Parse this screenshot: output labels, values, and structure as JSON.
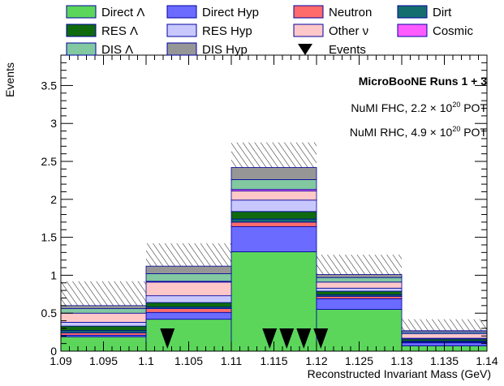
{
  "chart_data": {
    "type": "bar",
    "subtype": "stacked histogram with data points",
    "xlabel": "Reconstructed Invariant Mass (GeV)",
    "ylabel": "Events",
    "xlim": [
      1.09,
      1.14
    ],
    "ylim": [
      0,
      3.9
    ],
    "bin_edges": [
      1.09,
      1.1,
      1.11,
      1.12,
      1.13,
      1.14
    ],
    "x_ticks": [
      "1.09",
      "1.095",
      "1.1",
      "1.105",
      "1.11",
      "1.115",
      "1.12",
      "1.125",
      "1.13",
      "1.135",
      "1.14"
    ],
    "x_tick_values": [
      1.09,
      1.095,
      1.1,
      1.105,
      1.11,
      1.115,
      1.12,
      1.125,
      1.13,
      1.135,
      1.14
    ],
    "y_ticks": [
      "0",
      "0.5",
      "1",
      "1.5",
      "2",
      "2.5",
      "3",
      "3.5"
    ],
    "y_tick_values": [
      0,
      0.5,
      1,
      1.5,
      2,
      2.5,
      3,
      3.5
    ],
    "annotations": {
      "title": "MicroBooNE Runs 1 + 3",
      "fhc_prefix": "NuMI FHC, 2.2 × 10",
      "fhc_exp": "20",
      "fhc_suffix": " POT",
      "rhc_prefix": "NuMI RHC, 4.9 × 10",
      "rhc_exp": "20",
      "rhc_suffix": " POT"
    },
    "legend_position": "top",
    "legend": [
      {
        "name": "Direct Λ",
        "color": "#5bd65b",
        "kind": "box"
      },
      {
        "name": "Direct Hyp",
        "color": "#6b6bff",
        "kind": "box"
      },
      {
        "name": "Neutron",
        "color": "#ff6b6b",
        "kind": "box"
      },
      {
        "name": "Dirt",
        "color": "#146e6e",
        "kind": "box"
      },
      {
        "name": "RES Λ",
        "color": "#0f6a0f",
        "kind": "box"
      },
      {
        "name": "RES Hyp",
        "color": "#c8c8ff",
        "kind": "box"
      },
      {
        "name": "Other ν",
        "color": "#ffc8c8",
        "kind": "box"
      },
      {
        "name": "Cosmic",
        "color": "#ff5cff",
        "kind": "box"
      },
      {
        "name": "DIS Λ",
        "color": "#82c8a0",
        "kind": "box"
      },
      {
        "name": "DIS Hyp",
        "color": "#969696",
        "kind": "box"
      },
      {
        "name": "Events",
        "color": "#000000",
        "kind": "triangle"
      }
    ],
    "series": [
      {
        "name": "Direct Λ",
        "color": "#5bd65b",
        "values": [
          0.19,
          0.42,
          1.31,
          0.55,
          0.07
        ]
      },
      {
        "name": "Direct Hyp",
        "color": "#6b6bff",
        "values": [
          0.02,
          0.09,
          0.33,
          0.14,
          0.04
        ]
      },
      {
        "name": "Neutron",
        "color": "#ff6b6b",
        "values": [
          0.03,
          0.05,
          0.06,
          0.03,
          0.01
        ]
      },
      {
        "name": "Dirt",
        "color": "#146e6e",
        "values": [
          0.03,
          0.02,
          0.04,
          0.02,
          0.01
        ]
      },
      {
        "name": "RES Λ",
        "color": "#0f6a0f",
        "values": [
          0.06,
          0.06,
          0.1,
          0.05,
          0.03
        ]
      },
      {
        "name": "RES Hyp",
        "color": "#c8c8ff",
        "values": [
          0.05,
          0.09,
          0.15,
          0.04,
          0.01
        ]
      },
      {
        "name": "Other ν",
        "color": "#ffc8c8",
        "values": [
          0.12,
          0.18,
          0.12,
          0.08,
          0.06
        ]
      },
      {
        "name": "Cosmic",
        "color": "#ff5cff",
        "values": [
          0.0,
          0.01,
          0.02,
          0.0,
          0.0
        ]
      },
      {
        "name": "DIS Λ",
        "color": "#82c8a0",
        "values": [
          0.06,
          0.1,
          0.13,
          0.06,
          0.02
        ]
      },
      {
        "name": "DIS Hyp",
        "color": "#969696",
        "values": [
          0.04,
          0.1,
          0.16,
          0.04,
          0.02
        ]
      }
    ],
    "uncertainty_band": {
      "upper": [
        0.92,
        1.42,
        2.75,
        1.27,
        0.42
      ]
    },
    "events": [
      1.1025,
      1.1145,
      1.1165,
      1.1185,
      1.1205
    ]
  }
}
